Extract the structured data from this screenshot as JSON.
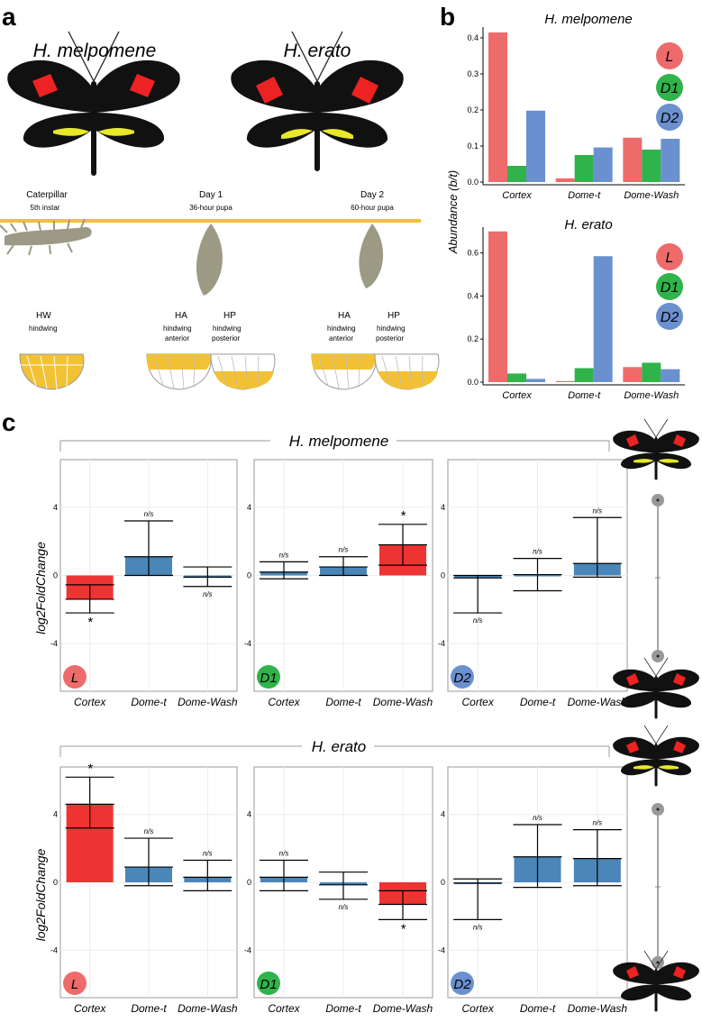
{
  "panel_labels": {
    "a": "a",
    "b": "b",
    "c": "c"
  },
  "panel_a": {
    "species_left": "H. melpomene",
    "species_right": "H. erato",
    "stages": [
      {
        "name": "Caterpillar",
        "detail": "5th instar"
      },
      {
        "name": "Day 1",
        "detail": "36-hour pupa"
      },
      {
        "name": "Day 2",
        "detail": "60-hour pupa"
      }
    ],
    "wings": [
      {
        "code": "HW",
        "line1": "hindwing",
        "line2": ""
      },
      {
        "code": "HA",
        "line1": "hindwing",
        "line2": "anterior"
      },
      {
        "code": "HP",
        "line1": "hindwing",
        "line2": "posterior"
      },
      {
        "code": "HA",
        "line1": "hindwing",
        "line2": "anterior"
      },
      {
        "code": "HP",
        "line1": "hindwing",
        "line2": "posterior"
      }
    ]
  },
  "colors": {
    "L": "#ee6b6b",
    "D1": "#2fb34a",
    "D2": "#6b90d0",
    "up": "#ee3333",
    "down": "#4a86b8"
  },
  "chart_data": [
    {
      "type": "bar",
      "panel": "b-top",
      "title": "H. melpomene",
      "ylabel": "Abundance (b/t)",
      "categories": [
        "Cortex",
        "Dome-t",
        "Dome-Wash"
      ],
      "series": [
        {
          "name": "L",
          "values": [
            0.415,
            0.01,
            0.123
          ]
        },
        {
          "name": "D1",
          "values": [
            0.045,
            0.075,
            0.09
          ]
        },
        {
          "name": "D2",
          "values": [
            0.198,
            0.096,
            0.12
          ]
        }
      ],
      "ylim": [
        0,
        0.43
      ],
      "ticks": [
        "0.0",
        "0.1",
        "0.2",
        "0.3",
        "0.4"
      ]
    },
    {
      "type": "bar",
      "panel": "b-bottom",
      "title": "H. erato",
      "ylabel": "Abundance (b/t)",
      "categories": [
        "Cortex",
        "Dome-t",
        "Dome-Wash"
      ],
      "series": [
        {
          "name": "L",
          "values": [
            0.7,
            0.005,
            0.07
          ]
        },
        {
          "name": "D1",
          "values": [
            0.04,
            0.065,
            0.09
          ]
        },
        {
          "name": "D2",
          "values": [
            0.015,
            0.585,
            0.06
          ]
        }
      ],
      "ylim": [
        0,
        0.72
      ],
      "ticks": [
        "0.0",
        "0.2",
        "0.4",
        "0.6"
      ]
    },
    {
      "type": "bar",
      "panel": "c",
      "ylabel": "log2FoldChange",
      "ticks": [
        "4",
        "0",
        "-4"
      ],
      "ylim": [
        -6.8,
        6.8
      ],
      "rows": [
        {
          "species": "H. melpomene",
          "groups": [
            {
              "label": "L",
              "categories": [
                "Cortex",
                "Dome-t",
                "Dome-Wash"
              ],
              "values": [
                -1.4,
                1.1,
                -0.1
              ],
              "lower": [
                -2.2,
                0,
                -0.65
              ],
              "upper": [
                -0.55,
                3.2,
                0.5
              ],
              "sig": [
                "*",
                "n/s",
                "n/s"
              ]
            },
            {
              "label": "D1",
              "categories": [
                "Cortex",
                "Dome-t",
                "Dome-Wash"
              ],
              "values": [
                0.2,
                0.5,
                1.8
              ],
              "lower": [
                -0.2,
                0,
                0.6
              ],
              "upper": [
                0.8,
                1.1,
                3.0
              ],
              "sig": [
                "n/s",
                "n/s",
                "*"
              ]
            },
            {
              "label": "D2",
              "categories": [
                "Cortex",
                "Dome-t",
                "Dome-Wash"
              ],
              "values": [
                -0.15,
                0.05,
                0.7
              ],
              "lower": [
                -2.2,
                -0.9,
                -0.1
              ],
              "upper": [
                0,
                1.0,
                3.4
              ],
              "sig": [
                "n/s",
                "n/s",
                "n/s"
              ]
            }
          ]
        },
        {
          "species": "H. erato",
          "groups": [
            {
              "label": "L",
              "categories": [
                "Cortex",
                "Dome-t",
                "Dome-Wash"
              ],
              "values": [
                4.6,
                0.9,
                0.3
              ],
              "lower": [
                3.2,
                -0.2,
                -0.5
              ],
              "upper": [
                6.2,
                2.6,
                1.3
              ],
              "sig": [
                "*",
                "n/s",
                "n/s"
              ]
            },
            {
              "label": "D1",
              "categories": [
                "Cortex",
                "Dome-t",
                "Dome-Wash"
              ],
              "values": [
                0.3,
                -0.15,
                -1.3
              ],
              "lower": [
                -0.5,
                -1.0,
                -2.2
              ],
              "upper": [
                1.3,
                0.6,
                -0.5
              ],
              "sig": [
                "n/s",
                "n/s",
                "*"
              ]
            },
            {
              "label": "D2",
              "categories": [
                "Cortex",
                "Dome-t",
                "Dome-Wash"
              ],
              "values": [
                -0.05,
                1.5,
                1.4
              ],
              "lower": [
                -2.2,
                -0.3,
                -0.2
              ],
              "upper": [
                0.2,
                3.4,
                3.1
              ],
              "sig": [
                "n/s",
                "n/s",
                "n/s"
              ]
            }
          ]
        }
      ]
    }
  ]
}
